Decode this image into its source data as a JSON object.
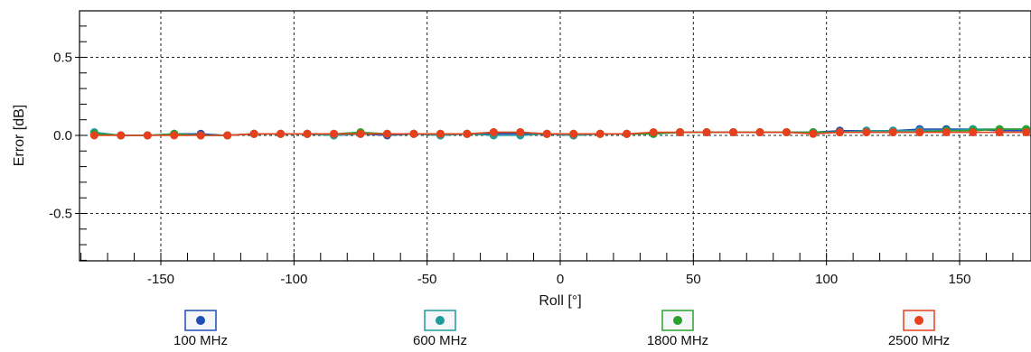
{
  "chart_data": {
    "type": "line",
    "title": "",
    "xlabel": "Roll [°]",
    "ylabel": "Error [dB]",
    "xlim": [
      -180,
      180
    ],
    "ylim": [
      -0.8,
      0.8
    ],
    "x_ticks": [
      -150,
      -100,
      -50,
      0,
      50,
      100,
      150
    ],
    "x_tick_labels": [
      "-150",
      "-100",
      "-50",
      "0",
      "50",
      "100",
      "150"
    ],
    "y_ticks": [
      0.5,
      0.0,
      -0.5
    ],
    "y_tick_labels": [
      "0.5",
      "0.0",
      "-0.5"
    ],
    "grid": true,
    "legend_position": "bottom",
    "x": [
      -175,
      -165,
      -155,
      -145,
      -135,
      -125,
      -115,
      -105,
      -95,
      -85,
      -75,
      -65,
      -55,
      -45,
      -35,
      -25,
      -15,
      -5,
      5,
      15,
      25,
      35,
      45,
      55,
      65,
      75,
      85,
      95,
      105,
      115,
      125,
      135,
      145,
      155,
      165,
      175
    ],
    "series": [
      {
        "name": "100 MHz",
        "color": "#1f4fb5",
        "values": [
          0.01,
          0.0,
          0.0,
          0.01,
          0.01,
          0.0,
          0.01,
          0.01,
          0.01,
          0.0,
          0.01,
          0.0,
          0.01,
          0.0,
          0.01,
          0.01,
          0.01,
          0.01,
          0.0,
          0.01,
          0.01,
          0.01,
          0.02,
          0.02,
          0.02,
          0.02,
          0.02,
          0.02,
          0.03,
          0.03,
          0.03,
          0.04,
          0.04,
          0.04,
          0.03,
          0.03
        ]
      },
      {
        "name": "600 MHz",
        "color": "#1f9c9a",
        "values": [
          0.02,
          0.0,
          0.0,
          0.01,
          0.0,
          0.0,
          0.01,
          0.01,
          0.01,
          0.0,
          0.01,
          0.01,
          0.01,
          0.0,
          0.01,
          0.0,
          0.0,
          0.01,
          0.0,
          0.01,
          0.01,
          0.01,
          0.02,
          0.02,
          0.02,
          0.02,
          0.02,
          0.02,
          0.02,
          0.03,
          0.03,
          0.03,
          0.03,
          0.04,
          0.04,
          0.04
        ]
      },
      {
        "name": "1800 MHz",
        "color": "#2ca02c",
        "values": [
          0.01,
          0.0,
          0.0,
          0.01,
          0.0,
          0.0,
          0.01,
          0.01,
          0.01,
          0.01,
          0.02,
          0.01,
          0.01,
          0.01,
          0.01,
          0.02,
          0.02,
          0.01,
          0.01,
          0.01,
          0.01,
          0.01,
          0.02,
          0.02,
          0.02,
          0.02,
          0.02,
          0.02,
          0.02,
          0.02,
          0.02,
          0.02,
          0.03,
          0.03,
          0.04,
          0.04
        ]
      },
      {
        "name": "2500 MHz",
        "color": "#e8401c",
        "values": [
          0.0,
          0.0,
          0.0,
          0.0,
          0.0,
          0.0,
          0.01,
          0.01,
          0.01,
          0.01,
          0.01,
          0.01,
          0.01,
          0.01,
          0.01,
          0.02,
          0.02,
          0.01,
          0.01,
          0.01,
          0.01,
          0.02,
          0.02,
          0.02,
          0.02,
          0.02,
          0.02,
          0.01,
          0.02,
          0.02,
          0.02,
          0.02,
          0.02,
          0.02,
          0.02,
          0.02
        ]
      }
    ]
  }
}
